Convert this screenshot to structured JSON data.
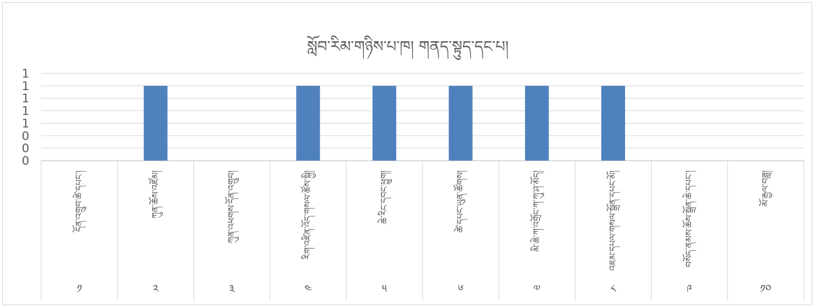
{
  "chart_data": {
    "type": "bar",
    "title": "སློབ་རིམ་གཉིས་པ་ཁ། གནད་སྟུད་དང་པ།",
    "xlabel": "",
    "ylabel": "",
    "y_tick_labels": [
      "0",
      "0",
      "0",
      "1",
      "1",
      "1",
      "1",
      "1"
    ],
    "ylim": [
      0,
      1.4
    ],
    "grid": true,
    "legend": "none",
    "bar_color": "#4f81bd",
    "categories": [
      {
        "label": "དོན་འགྲུབ་ཚེ་དཔང་།",
        "index": "༡"
      },
      {
        "label": "ཀུན་ཆོས་འཛོམ།",
        "index": "༢"
      },
      {
        "label": "ཀུན་འཕགས་དོན་འགྲུབ།",
        "index": "༣"
      },
      {
        "label": "རིག་འཛིན་འོད་གསལ་ཚོས་སྐྱི།",
        "index": "༤"
      },
      {
        "label": "ཆེ་རིང་དབང་ཕྱུག།",
        "index": "༥"
      },
      {
        "label": "ཚེ་དཔང་ཡུན་ཚོགས།",
        "index": "༦"
      },
      {
        "label": "མི་ཆེ་ཀ་འགྲོང་ཀ་ཀུ་ཤ་མོད།",
        "index": "༧"
      },
      {
        "label": "འཇམ་དཔལ་གསལ་སྒྲོན་དཔང་མོ།",
        "index": "༨"
      },
      {
        "label": "བསོད་ནམས་ཆོས་སྒྲོན་ཆེ་དཔང་།",
        "index": "༩"
      },
      {
        "label": "མོ་རྒྱལ་བཟླ།",
        "index": "༡༠"
      }
    ],
    "values": [
      0,
      1.2,
      0,
      1.2,
      1.2,
      1.2,
      1.2,
      1.2,
      0,
      0
    ]
  }
}
